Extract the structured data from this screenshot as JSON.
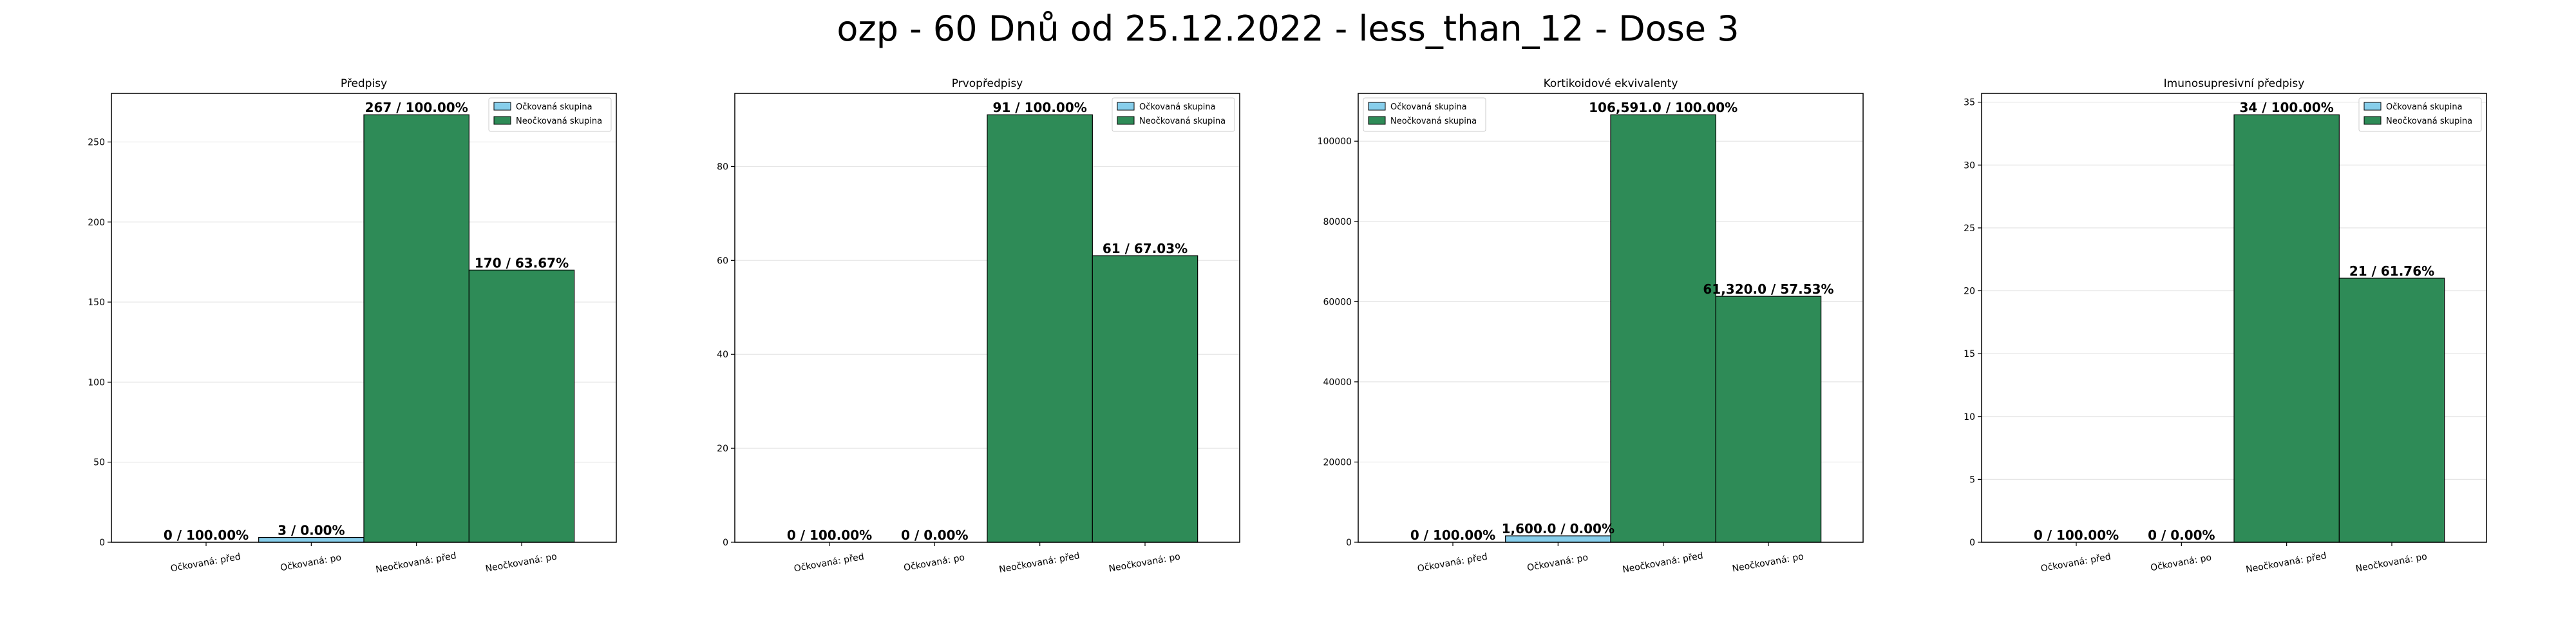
{
  "suptitle": "ozp - 60 Dnů od 25.12.2022 - less_than_12 - Dose 3",
  "colors": {
    "vaccinated": "#87ceeb",
    "unvaccinated": "#2e8b57",
    "edge": "#000000",
    "grid": "#e6e6e6"
  },
  "chart_data": [
    {
      "type": "bar",
      "title": "Předpisy",
      "categories": [
        "Očkovaná: před",
        "Očkovaná: po",
        "Neočkovaná: před",
        "Neočkovaná: po"
      ],
      "series": [
        {
          "name": "Očkovaná skupina",
          "values": [
            0,
            3,
            null,
            null
          ]
        },
        {
          "name": "Neočkovaná skupina",
          "values": [
            null,
            null,
            267,
            170
          ]
        }
      ],
      "data_labels": [
        "0 / 100.00%",
        "3 / 0.00%",
        "267 / 100.00%",
        "170 / 63.67%"
      ],
      "yticks": [
        0,
        50,
        100,
        150,
        200,
        250
      ],
      "ylim": [
        0,
        280.35
      ],
      "legend": "top-right",
      "grid": "y"
    },
    {
      "type": "bar",
      "title": "Prvopředpisy",
      "categories": [
        "Očkovaná: před",
        "Očkovaná: po",
        "Neočkovaná: před",
        "Neočkovaná: po"
      ],
      "series": [
        {
          "name": "Očkovaná skupina",
          "values": [
            0,
            0,
            null,
            null
          ]
        },
        {
          "name": "Neočkovaná skupina",
          "values": [
            null,
            null,
            91,
            61
          ]
        }
      ],
      "data_labels": [
        "0 / 100.00%",
        "0 / 0.00%",
        "91 / 100.00%",
        "61 / 67.03%"
      ],
      "yticks": [
        0,
        20,
        40,
        60,
        80
      ],
      "ylim": [
        0,
        95.55
      ],
      "legend": "top-right",
      "grid": "y"
    },
    {
      "type": "bar",
      "title": "Kortikoidové ekvivalenty",
      "categories": [
        "Očkovaná: před",
        "Očkovaná: po",
        "Neočkovaná: před",
        "Neočkovaná: po"
      ],
      "series": [
        {
          "name": "Očkovaná skupina",
          "values": [
            0,
            1600,
            null,
            null
          ]
        },
        {
          "name": "Neočkovaná skupina",
          "values": [
            null,
            null,
            106591,
            61320
          ]
        }
      ],
      "data_labels": [
        "0 / 100.00%",
        "1,600.0 / 0.00%",
        "106,591.0 / 100.00%",
        "61,320.0 / 57.53%"
      ],
      "yticks": [
        0,
        20000,
        40000,
        60000,
        80000,
        100000
      ],
      "ylim": [
        0,
        111920
      ],
      "legend": "top-left",
      "grid": "y"
    },
    {
      "type": "bar",
      "title": "Imunosupresivní předpisy",
      "categories": [
        "Očkovaná: před",
        "Očkovaná: po",
        "Neočkovaná: před",
        "Neočkovaná: po"
      ],
      "series": [
        {
          "name": "Očkovaná skupina",
          "values": [
            0,
            0,
            null,
            null
          ]
        },
        {
          "name": "Neočkovaná skupina",
          "values": [
            null,
            null,
            34,
            21
          ]
        }
      ],
      "data_labels": [
        "0 / 100.00%",
        "0 / 0.00%",
        "34 / 100.00%",
        "21 / 61.76%"
      ],
      "yticks": [
        0,
        5,
        10,
        15,
        20,
        25,
        30,
        35
      ],
      "ylim": [
        0,
        35.7
      ],
      "legend": "top-right",
      "grid": "y"
    }
  ]
}
